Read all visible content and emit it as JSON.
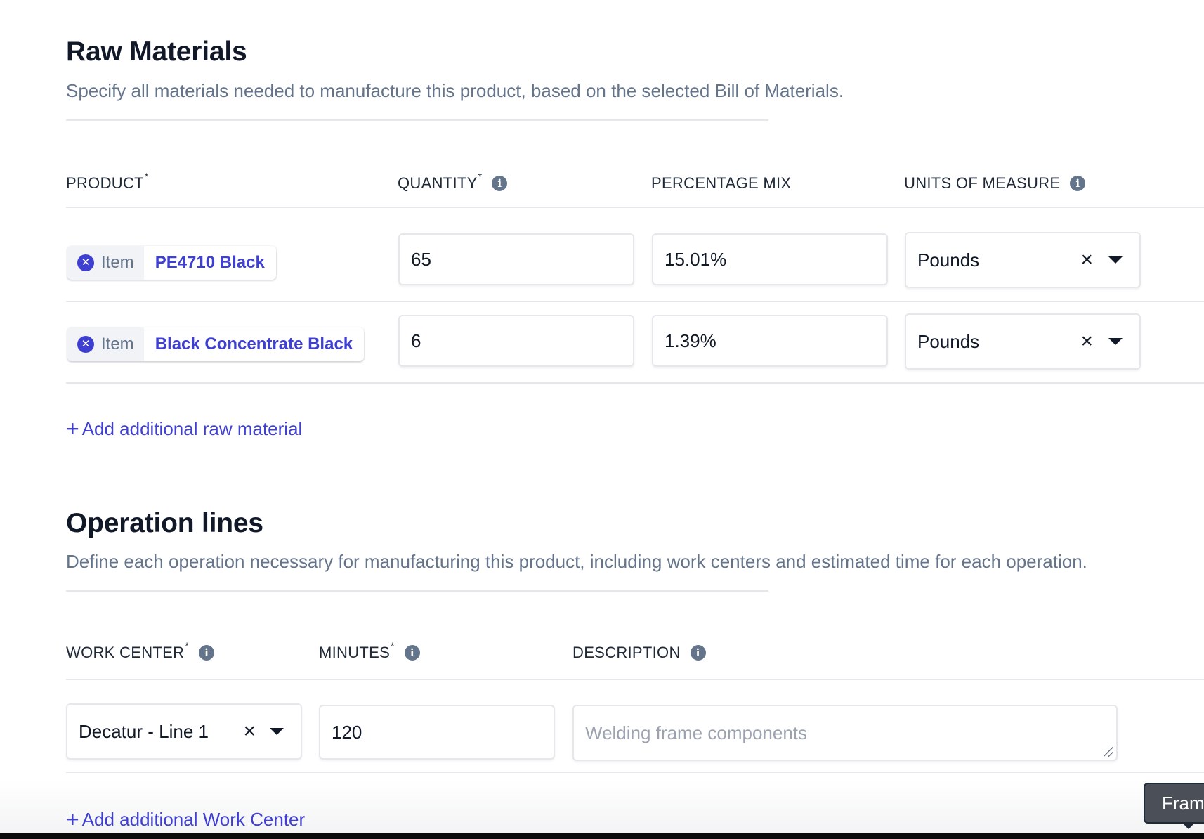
{
  "raw_materials": {
    "title": "Raw Materials",
    "description": "Specify all materials needed to manufacture this product, based on the selected Bill of Materials.",
    "headers": {
      "product": "PRODUCT",
      "quantity": "QUANTITY",
      "percentage_mix": "PERCENTAGE MIX",
      "units_of_measure": "UNITS OF MEASURE",
      "required_mark": "*"
    },
    "rows": [
      {
        "kind": "Item",
        "name": "PE4710 Black",
        "quantity": "65",
        "percentage": "15.01%",
        "unit": "Pounds"
      },
      {
        "kind": "Item",
        "name": "Black Concentrate Black",
        "quantity": "6",
        "percentage": "1.39%",
        "unit": "Pounds"
      }
    ],
    "add_label": "Add additional raw material"
  },
  "operation_lines": {
    "title": "Operation lines",
    "description": "Define each operation necessary for manufacturing this product, including work centers and estimated time for each operation.",
    "headers": {
      "work_center": "WORK CENTER",
      "minutes": "MINUTES",
      "description": "DESCRIPTION",
      "required_mark": "*"
    },
    "rows": [
      {
        "work_center": "Decatur - Line 1",
        "minutes": "120",
        "description_placeholder": "Welding frame components"
      }
    ],
    "add_label": "Add additional Work Center"
  },
  "tooltip": {
    "text": "Frame"
  },
  "icons": {
    "info": "info-icon",
    "remove": "remove-circle-icon",
    "clear": "clear-x-icon",
    "caret": "caret-down-icon",
    "plus": "plus-icon"
  },
  "colors": {
    "accent": "#3f3fd1",
    "muted_text": "#64748b",
    "heading": "#111827"
  }
}
